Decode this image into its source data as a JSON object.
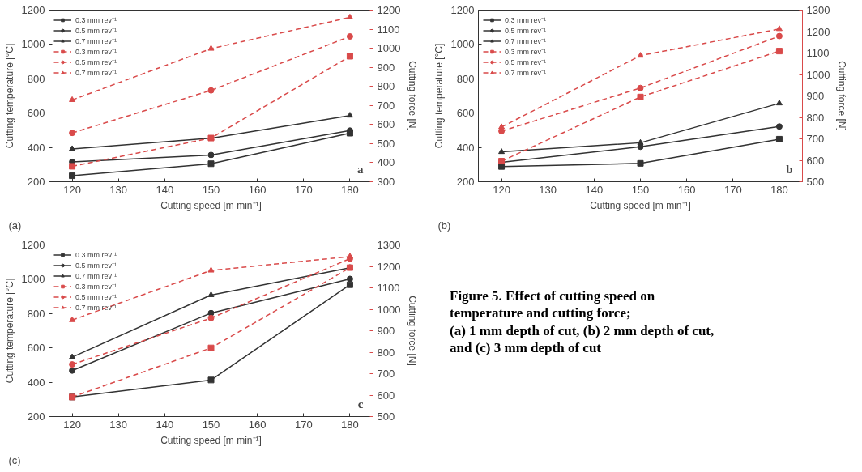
{
  "chart_data": [
    {
      "type": "line",
      "annotations": [
        "(a)",
        "a"
      ],
      "xlabel": "Cutting speed [m min⁻¹]",
      "ylabel": "Cutting temperature [°C]",
      "y2label": "Cutting force [N]",
      "x": [
        120,
        150,
        180
      ],
      "xlim": [
        115,
        185
      ],
      "xticks": [
        120,
        130,
        140,
        150,
        160,
        170,
        180
      ],
      "ylim": [
        200,
        1200
      ],
      "yticks": [
        200,
        400,
        600,
        800,
        1000,
        1200
      ],
      "y2lim": [
        300,
        1200
      ],
      "y2ticks": [
        300,
        400,
        500,
        600,
        700,
        800,
        900,
        1000,
        1100,
        1200
      ],
      "grid": false,
      "legend": "top left",
      "series": [
        {
          "name": "0.3 mm rev⁻¹",
          "color": "#333333",
          "marker": "square",
          "line_style": "solid",
          "values": [
            235,
            305,
            483
          ]
        },
        {
          "name": "0.5 mm rev⁻¹",
          "color": "#333333",
          "marker": "circle",
          "line_style": "solid",
          "values": [
            316,
            356,
            498
          ]
        },
        {
          "name": "0.7 mm rev⁻¹",
          "color": "#333333",
          "marker": "triangle",
          "line_style": "solid",
          "values": [
            391,
            454,
            586
          ]
        },
        {
          "name": "0.3 mm rev⁻¹",
          "color": "#d94a4a",
          "marker": "square",
          "line_style": "dashed",
          "axis": "y2",
          "values": [
            381,
            529,
            958
          ]
        },
        {
          "name": "0.5 mm rev⁻¹",
          "color": "#d94a4a",
          "marker": "circle",
          "line_style": "dashed",
          "axis": "y2",
          "values": [
            556,
            779,
            1062
          ]
        },
        {
          "name": "0.7 mm rev⁻¹",
          "color": "#d94a4a",
          "marker": "triangle",
          "line_style": "dashed",
          "axis": "y2",
          "values": [
            729,
            998,
            1162
          ]
        }
      ]
    },
    {
      "type": "line",
      "annotations": [
        "(b)",
        "b"
      ],
      "xlabel": "Cutting speed [m min⁻¹]",
      "ylabel": "Cutting temperature [°C]",
      "y2label": "Cutting force [N]",
      "x": [
        120,
        150,
        180
      ],
      "xlim": [
        115,
        185
      ],
      "xticks": [
        120,
        130,
        140,
        150,
        160,
        170,
        180
      ],
      "ylim": [
        200,
        1200
      ],
      "yticks": [
        200,
        400,
        600,
        800,
        1000,
        1200
      ],
      "y2lim": [
        500,
        1300
      ],
      "y2ticks": [
        500,
        600,
        700,
        800,
        900,
        1000,
        1100,
        1200,
        1300
      ],
      "grid": false,
      "legend": "top left",
      "series": [
        {
          "name": "0.3 mm rev⁻¹",
          "color": "#333333",
          "marker": "square",
          "line_style": "solid",
          "values": [
            289,
            307,
            448
          ]
        },
        {
          "name": "0.5 mm rev⁻¹",
          "color": "#333333",
          "marker": "circle",
          "line_style": "solid",
          "values": [
            313,
            404,
            522
          ]
        },
        {
          "name": "0.7 mm rev⁻¹",
          "color": "#333333",
          "marker": "triangle",
          "line_style": "solid",
          "values": [
            374,
            427,
            657
          ]
        },
        {
          "name": "0.3 mm rev⁻¹",
          "color": "#d94a4a",
          "marker": "square",
          "line_style": "dashed",
          "axis": "y2",
          "values": [
            596,
            895,
            1109
          ]
        },
        {
          "name": "0.5 mm rev⁻¹",
          "color": "#d94a4a",
          "marker": "circle",
          "line_style": "dashed",
          "axis": "y2",
          "values": [
            736,
            937,
            1179
          ]
        },
        {
          "name": "0.7 mm rev⁻¹",
          "color": "#d94a4a",
          "marker": "triangle",
          "line_style": "dashed",
          "axis": "y2",
          "values": [
            755,
            1088,
            1212
          ]
        }
      ]
    },
    {
      "type": "line",
      "annotations": [
        "(c)",
        "c"
      ],
      "xlabel": "Cutting speed [m min⁻¹]",
      "ylabel": "Cutting temperature [°C]",
      "y2label": "Cutting force [N]",
      "x": [
        120,
        150,
        180
      ],
      "xlim": [
        115,
        185
      ],
      "xticks": [
        120,
        130,
        140,
        150,
        160,
        170,
        180
      ],
      "ylim": [
        200,
        1200
      ],
      "yticks": [
        200,
        400,
        600,
        800,
        1000,
        1200
      ],
      "y2lim": [
        500,
        1300
      ],
      "y2ticks": [
        500,
        600,
        700,
        800,
        900,
        1000,
        1100,
        1200,
        1300
      ],
      "grid": false,
      "legend": "top left",
      "series": [
        {
          "name": "0.3 mm rev⁻¹",
          "color": "#333333",
          "marker": "square",
          "line_style": "solid",
          "values": [
            314,
            413,
            968
          ]
        },
        {
          "name": "0.5 mm rev⁻¹",
          "color": "#333333",
          "marker": "circle",
          "line_style": "solid",
          "values": [
            468,
            803,
            1002
          ]
        },
        {
          "name": "0.7 mm rev⁻¹",
          "color": "#333333",
          "marker": "triangle",
          "line_style": "solid",
          "values": [
            546,
            908,
            1067
          ]
        },
        {
          "name": "0.3 mm rev⁻¹",
          "color": "#d94a4a",
          "marker": "square",
          "line_style": "dashed",
          "axis": "y2",
          "values": [
            591,
            820,
            1194
          ]
        },
        {
          "name": "0.5 mm rev⁻¹",
          "color": "#d94a4a",
          "marker": "circle",
          "line_style": "dashed",
          "axis": "y2",
          "values": [
            743,
            959,
            1236
          ]
        },
        {
          "name": "0.7 mm rev⁻¹",
          "color": "#d94a4a",
          "marker": "triangle",
          "line_style": "dashed",
          "axis": "y2",
          "values": [
            950,
            1181,
            1246
          ]
        }
      ]
    },
    {
      "type": "other",
      "annotations": [
        "Figure 5. Effect of cutting speed on",
        "temperature and cutting force;",
        "(a) 1 mm depth of cut, (b) 2 mm depth of cut,",
        "and (c) 3 mm depth of cut"
      ]
    }
  ]
}
